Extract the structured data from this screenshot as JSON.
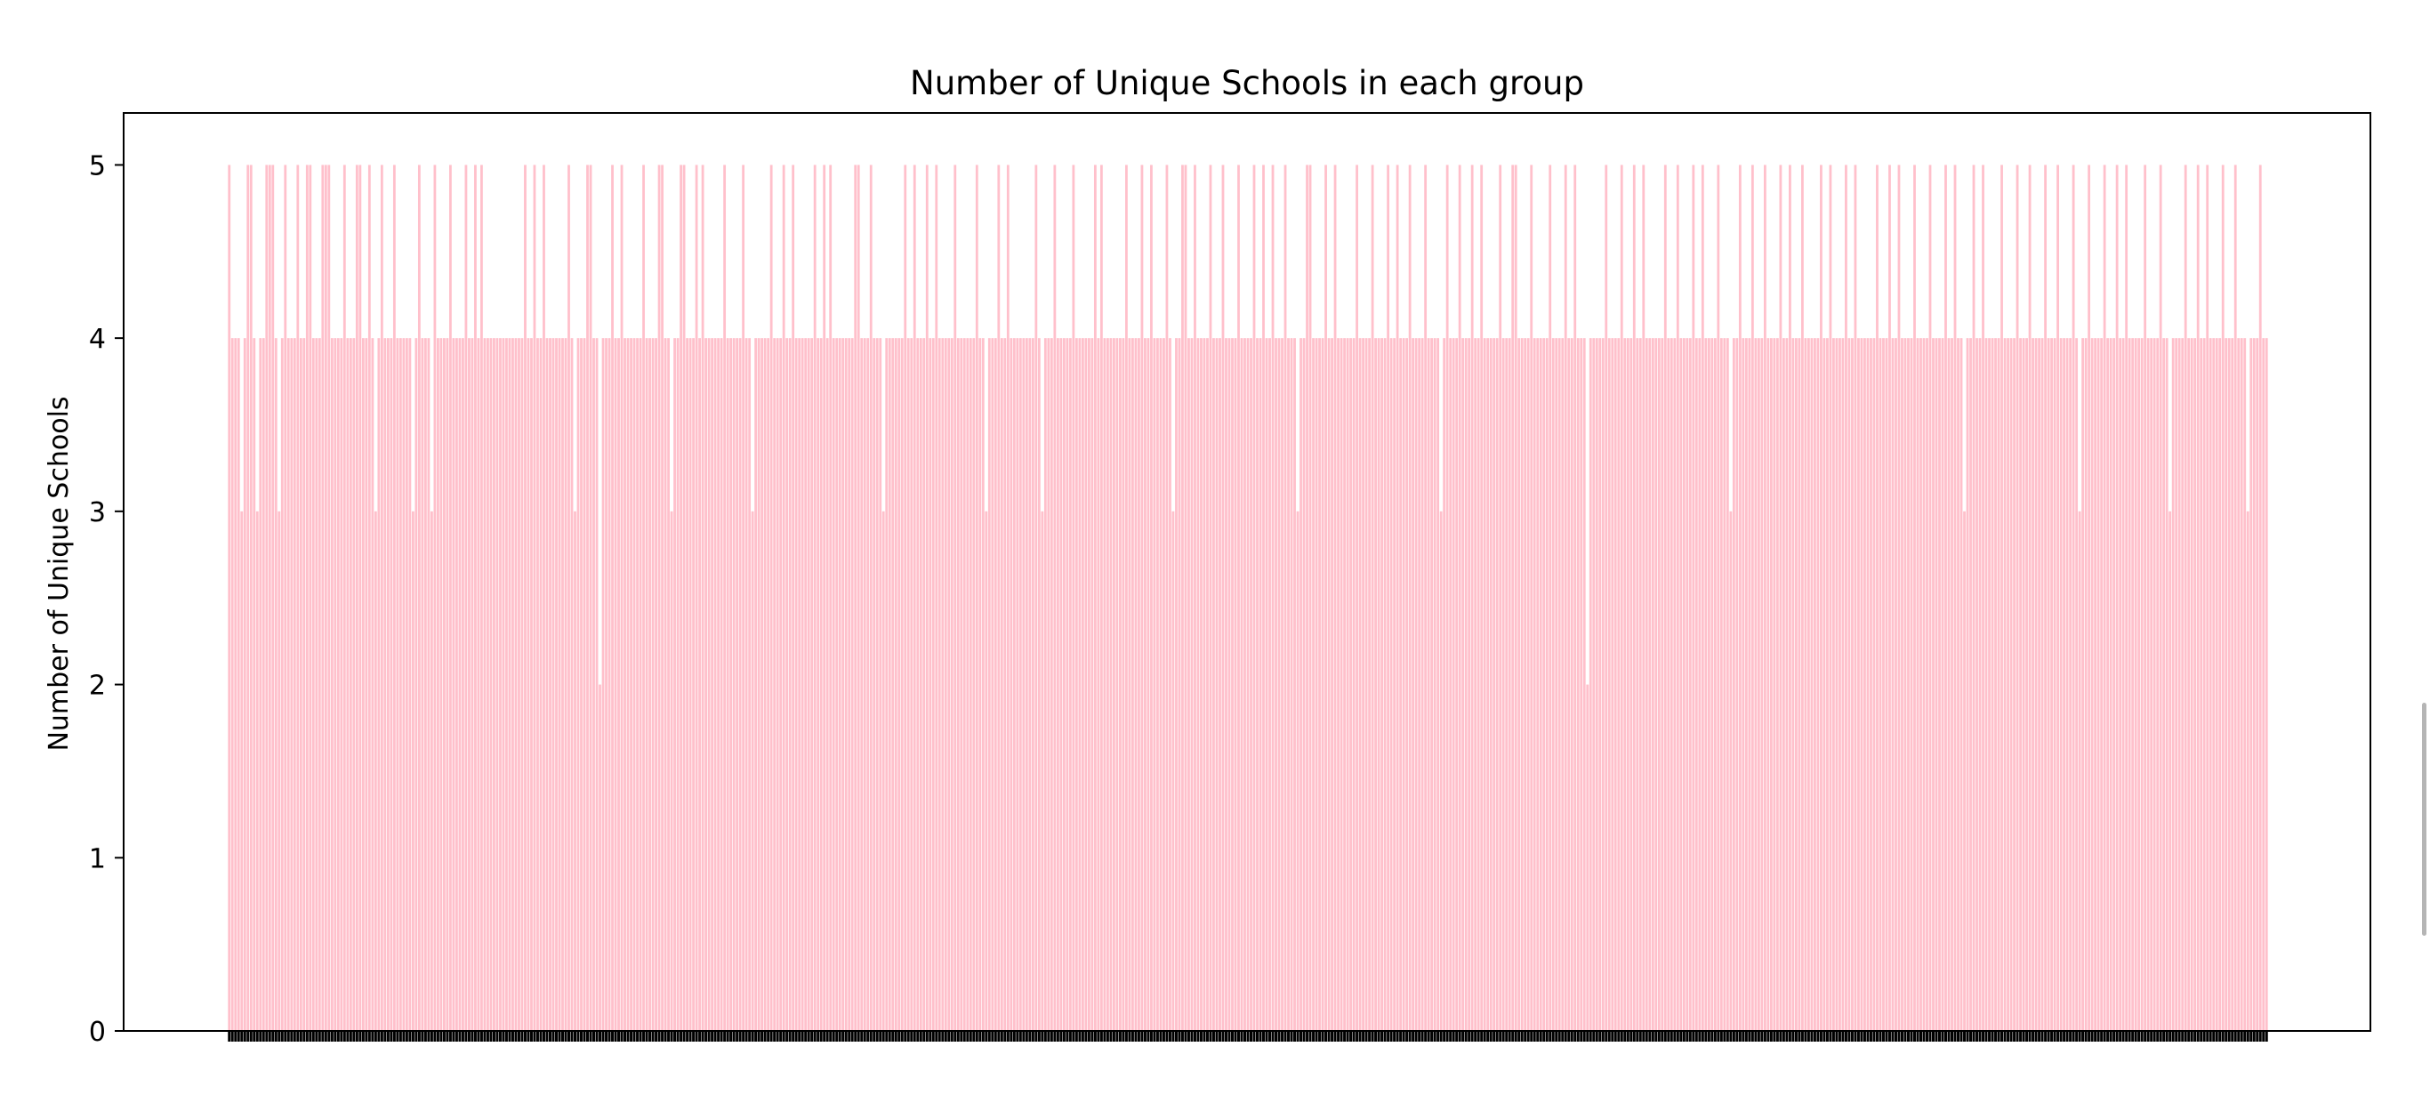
{
  "chart_data": {
    "type": "bar",
    "title": "Number of Unique Schools in each group",
    "xlabel": "",
    "ylabel": "Number of Unique Schools",
    "ylim": [
      0,
      5.3
    ],
    "yticks": [
      0,
      1,
      2,
      3,
      4,
      5
    ],
    "bar_color": "#ffc0cb",
    "grid": false,
    "legend": "none",
    "n_groups": 600,
    "value_distribution": "600 groups; each bar is 3, 4 or 5 unique schools (mostly 4, about a third 5, under a tenth 3), plus two groups with 2",
    "values": [
      5,
      4,
      4,
      4,
      3,
      4,
      5,
      5,
      4,
      3,
      4,
      4,
      5,
      5,
      5,
      4,
      3,
      4,
      5,
      4,
      4,
      4,
      5,
      4,
      4,
      5,
      5,
      4,
      4,
      4,
      5,
      5,
      5,
      4,
      4,
      4,
      4,
      5,
      4,
      4,
      4,
      5,
      5,
      4,
      4,
      5,
      4,
      3,
      4,
      5,
      4,
      4,
      4,
      5,
      4,
      4,
      4,
      4,
      4,
      3,
      4,
      5,
      4,
      4,
      4,
      3,
      5,
      4,
      4,
      4,
      4,
      5,
      4,
      4,
      4,
      4,
      5,
      4,
      4,
      5,
      4,
      5,
      4,
      4,
      4,
      4,
      4,
      4,
      4,
      4,
      4,
      4,
      4,
      4,
      4,
      5,
      4,
      4,
      5,
      4,
      4,
      5,
      4,
      4,
      4,
      4,
      4,
      4,
      4,
      5,
      4,
      3,
      4,
      4,
      4,
      5,
      5,
      4,
      4,
      2,
      4,
      4,
      4,
      5,
      4,
      4,
      5,
      4,
      4,
      4,
      4,
      4,
      4,
      5,
      4,
      4,
      4,
      4,
      5,
      5,
      4,
      4,
      3,
      4,
      4,
      5,
      5,
      4,
      4,
      4,
      5,
      4,
      5,
      4,
      4,
      4,
      4,
      4,
      4,
      5,
      4,
      4,
      4,
      4,
      4,
      5,
      4,
      4,
      3,
      4,
      4,
      4,
      4,
      4,
      5,
      4,
      4,
      4,
      5,
      4,
      4,
      5,
      4,
      4,
      4,
      4,
      4,
      4,
      5,
      4,
      4,
      5,
      4,
      5,
      4,
      4,
      4,
      4,
      4,
      4,
      4,
      5,
      5,
      4,
      4,
      4,
      5,
      4,
      4,
      4,
      3,
      4,
      4,
      4,
      4,
      4,
      4,
      5,
      4,
      4,
      5,
      4,
      4,
      4,
      5,
      4,
      4,
      5,
      4,
      4,
      4,
      4,
      4,
      5,
      4,
      4,
      4,
      4,
      4,
      4,
      5,
      4,
      4,
      3,
      4,
      4,
      4,
      5,
      4,
      4,
      5,
      4,
      4,
      4,
      4,
      4,
      4,
      4,
      4,
      5,
      4,
      3,
      4,
      4,
      4,
      5,
      4,
      4,
      4,
      4,
      4,
      5,
      4,
      4,
      4,
      4,
      4,
      4,
      5,
      4,
      5,
      4,
      4,
      4,
      4,
      4,
      4,
      4,
      5,
      4,
      4,
      4,
      4,
      5,
      4,
      4,
      5,
      4,
      4,
      4,
      4,
      5,
      4,
      3,
      4,
      4,
      5,
      5,
      4,
      4,
      5,
      4,
      4,
      4,
      4,
      5,
      4,
      4,
      4,
      5,
      4,
      4,
      4,
      4,
      5,
      4,
      4,
      4,
      4,
      5,
      4,
      4,
      5,
      4,
      4,
      5,
      4,
      4,
      4,
      5,
      4,
      4,
      4,
      3,
      4,
      4,
      5,
      5,
      4,
      4,
      4,
      4,
      5,
      4,
      4,
      5,
      4,
      4,
      4,
      4,
      4,
      4,
      5,
      4,
      4,
      4,
      4,
      5,
      4,
      4,
      4,
      4,
      5,
      4,
      4,
      5,
      4,
      4,
      4,
      5,
      4,
      4,
      4,
      4,
      5,
      4,
      4,
      4,
      4,
      3,
      4,
      5,
      4,
      4,
      4,
      5,
      4,
      4,
      4,
      5,
      4,
      4,
      5,
      4,
      4,
      4,
      4,
      4,
      5,
      4,
      4,
      4,
      5,
      5,
      4,
      4,
      4,
      4,
      5,
      4,
      4,
      4,
      4,
      4,
      5,
      4,
      4,
      4,
      4,
      5,
      4,
      4,
      5,
      4,
      4,
      4,
      2,
      4,
      4,
      4,
      4,
      4,
      5,
      4,
      4,
      4,
      4,
      5,
      4,
      4,
      4,
      5,
      4,
      4,
      5,
      4,
      4,
      4,
      4,
      4,
      4,
      5,
      4,
      4,
      4,
      5,
      4,
      4,
      4,
      4,
      5,
      4,
      4,
      5,
      4,
      4,
      4,
      4,
      5,
      4,
      4,
      4,
      3,
      4,
      4,
      5,
      4,
      4,
      4,
      5,
      4,
      4,
      4,
      5,
      4,
      4,
      4,
      4,
      5,
      4,
      4,
      5,
      4,
      4,
      4,
      5,
      4,
      4,
      4,
      4,
      4,
      5,
      4,
      4,
      5,
      4,
      4,
      4,
      4,
      5,
      4,
      4,
      5,
      4,
      4,
      4,
      4,
      4,
      4,
      5,
      4,
      4,
      4,
      5,
      4,
      4,
      5,
      4,
      4,
      4,
      4,
      5,
      4,
      4,
      4,
      4,
      5,
      4,
      4,
      4,
      4,
      5,
      4,
      4,
      5,
      4,
      4,
      3,
      4,
      4,
      5,
      4,
      4,
      5,
      4,
      4,
      4,
      4,
      4,
      5,
      4,
      4,
      4,
      4,
      5,
      4,
      4,
      4,
      5,
      4,
      4,
      4,
      4,
      5,
      4,
      4,
      4,
      5,
      4,
      4,
      4,
      4,
      5,
      4,
      3,
      4,
      4,
      5,
      4,
      4,
      4,
      4,
      5,
      4,
      4,
      4,
      5,
      4,
      4,
      5,
      4,
      4,
      4,
      4,
      4,
      5,
      4,
      4,
      4,
      4,
      5,
      4,
      4,
      3,
      4,
      4,
      4,
      4,
      5,
      4,
      4,
      4,
      5,
      4,
      4,
      5,
      4,
      4,
      4,
      4,
      5,
      4,
      4,
      4,
      5,
      4,
      4,
      4,
      3,
      4,
      4,
      4,
      5,
      4,
      4
    ]
  }
}
